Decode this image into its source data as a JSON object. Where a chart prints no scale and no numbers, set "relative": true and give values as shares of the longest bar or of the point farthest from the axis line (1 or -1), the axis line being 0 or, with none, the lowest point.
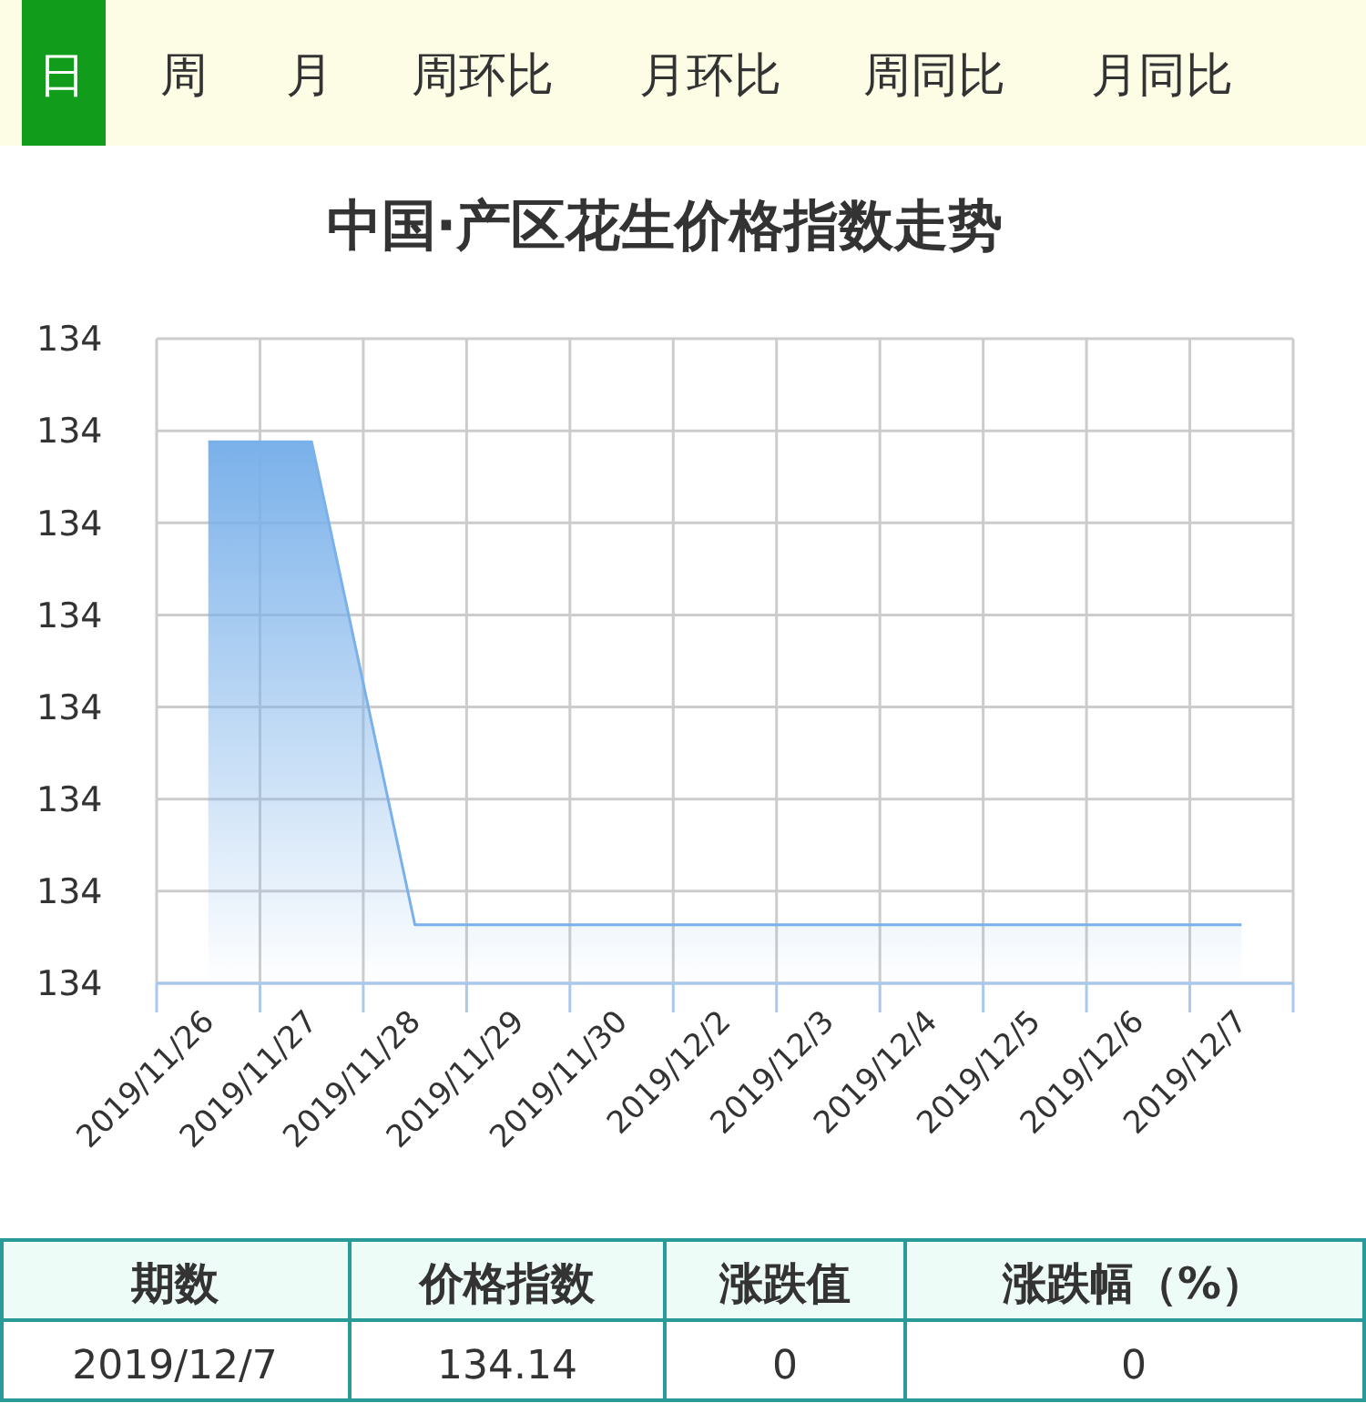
{
  "chart_data": {
    "type": "area",
    "title": "中国·产区花生价格指数走势",
    "relative": true,
    "categories": [
      "2019/11/26",
      "2019/11/27",
      "2019/11/28",
      "2019/11/29",
      "2019/11/30",
      "2019/12/2",
      "2019/12/3",
      "2019/12/4",
      "2019/12/5",
      "2019/12/6",
      "2019/12/7"
    ],
    "series": [
      {
        "color": "#7ab1ea",
        "values": [
          1,
          1,
          0.108,
          0.108,
          0.108,
          0.108,
          0.108,
          0.108,
          0.108,
          0.108,
          0.108
        ]
      }
    ],
    "grid": true,
    "annotations": [
      "日",
      "周",
      "月",
      "周环比",
      "月环比",
      "周同比",
      "月同比",
      "期数",
      "价格指数",
      "涨跌值",
      "涨跌幅（%）",
      "2019/12/7",
      "134.14",
      "0",
      "0",
      "134",
      "134",
      "134",
      "134",
      "134",
      "134",
      "134",
      "134"
    ]
  }
}
